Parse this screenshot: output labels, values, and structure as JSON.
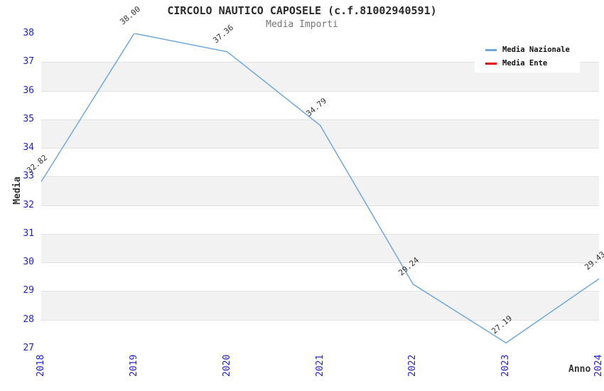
{
  "chart_data": {
    "type": "line",
    "title": "CIRCOLO NAUTICO CAPOSELE (c.f.81002940591)",
    "subtitle": "Media Importi",
    "xlabel": "Anno",
    "ylabel": "Media",
    "x": [
      2018,
      2019,
      2020,
      2021,
      2022,
      2023,
      2024
    ],
    "series": [
      {
        "name": "Media Nazionale",
        "color": "#6fa8dc",
        "values": [
          32.82,
          38.0,
          37.36,
          34.79,
          29.24,
          27.19,
          29.43
        ]
      },
      {
        "name": "Media Ente",
        "color": "#dd0000",
        "values": []
      }
    ],
    "point_labels": [
      "32.82",
      "38.00",
      "37.36",
      "34.79",
      "29.24",
      "27.19",
      "29.43"
    ],
    "ylim": [
      27,
      38
    ],
    "yticks": [
      27,
      28,
      29,
      30,
      31,
      32,
      33,
      34,
      35,
      36,
      37,
      38
    ],
    "legend_position": "top-right",
    "grid": "horizontal-bands",
    "tick_label_color": "#2222cc",
    "band_color": "#f2f2f2"
  }
}
